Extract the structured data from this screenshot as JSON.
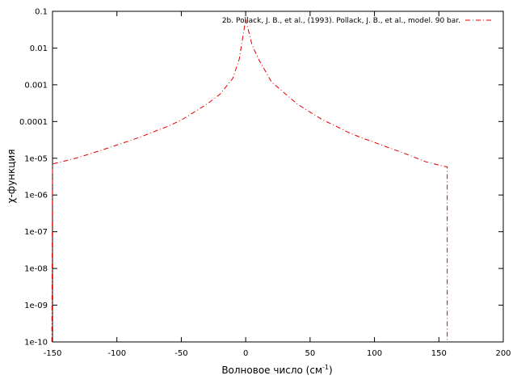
{
  "chart_data": {
    "type": "line",
    "title": "",
    "xlabel": "Волновое число (см",
    "xlabel_sup": "-1",
    "xlabel_close": ")",
    "ylabel": "χ-функция",
    "xlim": [
      -150,
      200
    ],
    "ylim": [
      1e-10,
      0.1
    ],
    "yscale": "log",
    "grid": false,
    "legend_position": "top-right",
    "x_ticks": [
      -150,
      -100,
      -50,
      0,
      50,
      100,
      150,
      200
    ],
    "x_tick_labels": [
      "-150",
      "-100",
      "-50",
      "0",
      "50",
      "100",
      "150",
      "200"
    ],
    "y_ticks": [
      1e-10,
      1e-09,
      1e-08,
      1e-07,
      1e-06,
      1e-05,
      0.0001,
      0.001,
      0.01,
      0.1
    ],
    "y_tick_labels": [
      "1e-10",
      "1e-09",
      "1e-08",
      "1e-07",
      "1e-06",
      "1e-05",
      "0.0001",
      "0.001",
      "0.01",
      "0.1"
    ],
    "series": [
      {
        "name": "2b. Pollack, J. B., et al., (1993). Pollack, J. B., et al., model. 90 bar.",
        "color": "#e00000",
        "line_style": "dash-dot",
        "x": [
          -150.5,
          -150,
          -140,
          -130,
          -120,
          -110,
          -100,
          -90,
          -80,
          -70,
          -60,
          -50,
          -40,
          -30,
          -20,
          -10,
          -5,
          0,
          5,
          10,
          20,
          30,
          40,
          50,
          60,
          70,
          80,
          90,
          100,
          110,
          120,
          130,
          140,
          150,
          156.5,
          156.5
        ],
        "y": [
          1e-10,
          7e-06,
          8.5e-06,
          1.05e-05,
          1.35e-05,
          1.75e-05,
          2.3e-05,
          3e-05,
          4e-05,
          5.5e-05,
          7.5e-05,
          0.00011,
          0.00018,
          0.0003,
          0.00055,
          0.0015,
          0.005,
          0.06,
          0.012,
          0.005,
          0.0012,
          0.0006,
          0.0003,
          0.00018,
          0.00011,
          7.5e-05,
          5e-05,
          3.6e-05,
          2.7e-05,
          2e-05,
          1.5e-05,
          1.1e-05,
          8e-06,
          6.5e-06,
          5.8e-06,
          1e-10
        ]
      }
    ]
  }
}
